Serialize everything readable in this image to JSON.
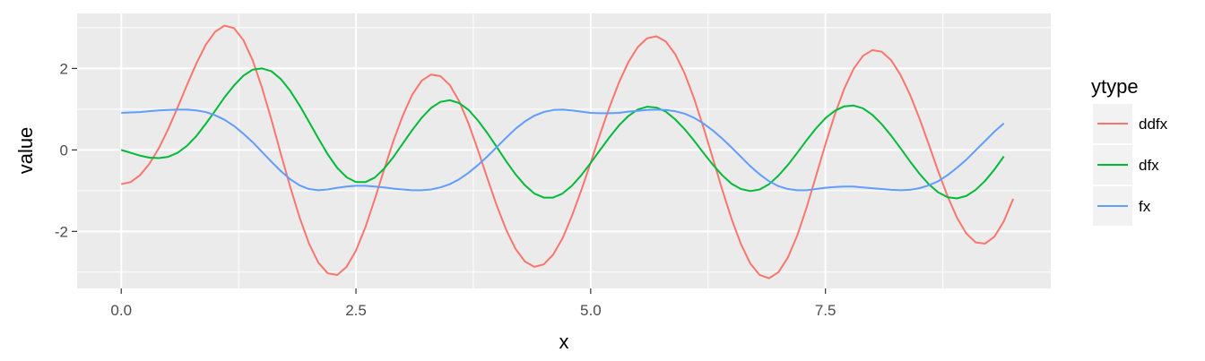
{
  "chart_data": {
    "type": "line",
    "title": "",
    "xlabel": "x",
    "ylabel": "value",
    "xlim": [
      -0.47,
      9.9
    ],
    "ylim": [
      -3.4,
      3.35
    ],
    "x_ticks": [
      0,
      2.5,
      5,
      7.5
    ],
    "x_tick_labels": [
      "0.0",
      "2.5",
      "5.0",
      "7.5"
    ],
    "x_minor_ticks": [
      1.25,
      3.75,
      6.25,
      8.75
    ],
    "y_ticks": [
      -2,
      0,
      2
    ],
    "y_tick_labels": [
      "-2",
      "0",
      "2"
    ],
    "y_minor_ticks": [
      -3,
      -1,
      1,
      3
    ],
    "grid": true,
    "legend": {
      "title": "ytype",
      "position": "right",
      "entries": [
        "ddfx",
        "dfx",
        "fx"
      ]
    },
    "x_start": 0,
    "x_step": 0.1,
    "series": [
      {
        "name": "ddfx",
        "color": "#F8766D",
        "values": [
          -0.84,
          -0.79,
          -0.62,
          -0.34,
          0.04,
          0.51,
          1.04,
          1.59,
          2.12,
          2.58,
          2.9,
          3.05,
          2.99,
          2.7,
          2.2,
          1.52,
          0.74,
          -0.1,
          -0.91,
          -1.66,
          -2.3,
          -2.77,
          -3.03,
          -3.07,
          -2.87,
          -2.47,
          -1.9,
          -1.21,
          -0.48,
          0.23,
          0.85,
          1.36,
          1.7,
          1.85,
          1.81,
          1.59,
          1.19,
          0.64,
          -0.01,
          -0.7,
          -1.37,
          -1.96,
          -2.43,
          -2.74,
          -2.87,
          -2.81,
          -2.57,
          -2.17,
          -1.62,
          -0.99,
          -0.31,
          0.39,
          1.05,
          1.65,
          2.15,
          2.52,
          2.74,
          2.79,
          2.66,
          2.35,
          1.88,
          1.27,
          0.56,
          -0.2,
          -0.97,
          -1.69,
          -2.31,
          -2.79,
          -3.07,
          -3.15,
          -3.0,
          -2.64,
          -2.1,
          -1.41,
          -0.64,
          0.14,
          0.87,
          1.5,
          1.99,
          2.31,
          2.45,
          2.41,
          2.2,
          1.84,
          1.36,
          0.78,
          0.14,
          -0.52,
          -1.13,
          -1.66,
          -2.05,
          -2.27,
          -2.3,
          -2.13,
          -1.75,
          -1.2
        ]
      },
      {
        "name": "dfx",
        "color": "#00BA38",
        "values": [
          0,
          -0.07,
          -0.14,
          -0.19,
          -0.2,
          -0.17,
          -0.07,
          0.1,
          0.34,
          0.64,
          0.96,
          1.29,
          1.58,
          1.82,
          1.97,
          2.0,
          1.93,
          1.74,
          1.45,
          1.09,
          0.69,
          0.28,
          -0.11,
          -0.44,
          -0.67,
          -0.79,
          -0.79,
          -0.68,
          -0.46,
          -0.17,
          0.16,
          0.49,
          0.79,
          1.03,
          1.18,
          1.22,
          1.15,
          0.98,
          0.72,
          0.41,
          0.07,
          -0.28,
          -0.6,
          -0.87,
          -1.07,
          -1.17,
          -1.17,
          -1.07,
          -0.88,
          -0.62,
          -0.32,
          0.0,
          0.31,
          0.6,
          0.83,
          0.99,
          1.06,
          1.04,
          0.94,
          0.75,
          0.51,
          0.23,
          -0.07,
          -0.36,
          -0.62,
          -0.83,
          -0.96,
          -1.01,
          -0.97,
          -0.84,
          -0.63,
          -0.37,
          -0.07,
          0.24,
          0.53,
          0.78,
          0.96,
          1.07,
          1.09,
          1.02,
          0.86,
          0.63,
          0.35,
          0.04,
          -0.28,
          -0.58,
          -0.84,
          -1.04,
          -1.16,
          -1.19,
          -1.13,
          -0.98,
          -0.76,
          -0.48,
          -0.16
        ]
      },
      {
        "name": "fx",
        "color": "#619CFF",
        "values": [
          0.91,
          0.92,
          0.93,
          0.95,
          0.97,
          0.98,
          0.99,
          0.99,
          0.97,
          0.93,
          0.85,
          0.74,
          0.59,
          0.4,
          0.19,
          -0.05,
          -0.29,
          -0.52,
          -0.72,
          -0.87,
          -0.96,
          -0.99,
          -0.97,
          -0.93,
          -0.9,
          -0.88,
          -0.88,
          -0.9,
          -0.92,
          -0.95,
          -0.97,
          -0.99,
          -0.99,
          -0.97,
          -0.92,
          -0.84,
          -0.72,
          -0.56,
          -0.37,
          -0.16,
          0.07,
          0.3,
          0.52,
          0.7,
          0.84,
          0.93,
          0.98,
          0.99,
          0.97,
          0.94,
          0.91,
          0.9,
          0.9,
          0.91,
          0.94,
          0.96,
          0.98,
          0.99,
          0.98,
          0.95,
          0.89,
          0.79,
          0.65,
          0.48,
          0.28,
          0.06,
          -0.17,
          -0.4,
          -0.6,
          -0.77,
          -0.89,
          -0.96,
          -0.99,
          -0.99,
          -0.96,
          -0.93,
          -0.91,
          -0.9,
          -0.9,
          -0.92,
          -0.94,
          -0.96,
          -0.98,
          -0.99,
          -0.98,
          -0.94,
          -0.87,
          -0.77,
          -0.62,
          -0.44,
          -0.24,
          -0.01,
          0.22,
          0.45,
          0.65
        ]
      }
    ]
  }
}
